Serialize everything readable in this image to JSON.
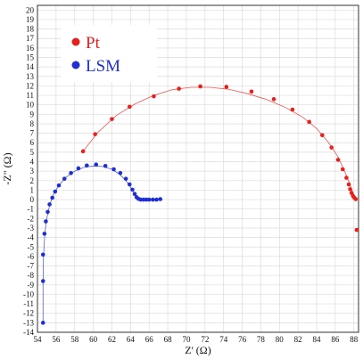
{
  "chart_data": {
    "type": "scatter",
    "title": "",
    "xlabel": "Z' (Ω)",
    "ylabel": "-Z\" (Ω)",
    "xlim": [
      54,
      88.5
    ],
    "ylim": [
      -14,
      20.5
    ],
    "xticks": [
      54,
      56,
      58,
      60,
      62,
      64,
      66,
      68,
      70,
      72,
      74,
      76,
      78,
      80,
      82,
      84,
      86,
      88
    ],
    "yticks": [
      -14,
      -13,
      -12,
      -11,
      -10,
      -9,
      -8,
      -7,
      -6,
      -5,
      -4,
      -3,
      -2,
      -1,
      0,
      1,
      2,
      3,
      4,
      5,
      6,
      7,
      8,
      9,
      10,
      11,
      12,
      13,
      14,
      15,
      16,
      17,
      18,
      19,
      20
    ],
    "grid": true,
    "legend_position": "top-left",
    "series": [
      {
        "name": "Pt",
        "color": "#e8201c",
        "points": [
          [
            58.9,
            5.1
          ],
          [
            60.2,
            6.9
          ],
          [
            62.0,
            8.5
          ],
          [
            63.9,
            9.8
          ],
          [
            66.5,
            10.9
          ],
          [
            69.2,
            11.7
          ],
          [
            71.5,
            11.95
          ],
          [
            74.3,
            11.9
          ],
          [
            77.0,
            11.4
          ],
          [
            79.4,
            10.6
          ],
          [
            81.4,
            9.5
          ],
          [
            83.2,
            8.2
          ],
          [
            84.6,
            6.8
          ],
          [
            85.6,
            5.5
          ],
          [
            86.3,
            4.2
          ],
          [
            86.8,
            3.2
          ],
          [
            87.2,
            2.3
          ],
          [
            87.45,
            1.6
          ],
          [
            87.6,
            1.1
          ],
          [
            87.75,
            0.7
          ],
          [
            87.9,
            0.4
          ],
          [
            88.05,
            0.2
          ],
          [
            88.2,
            0.05
          ],
          [
            88.3,
            -3.2
          ]
        ],
        "fit": [
          [
            58.9,
            5.1
          ],
          [
            60.5,
            7.1
          ],
          [
            62.5,
            8.9
          ],
          [
            64.5,
            10.1
          ],
          [
            66.5,
            11.0
          ],
          [
            68.5,
            11.6
          ],
          [
            70.5,
            11.85
          ],
          [
            72.5,
            11.85
          ],
          [
            74.5,
            11.65
          ],
          [
            76.5,
            11.2
          ],
          [
            78.5,
            10.6
          ],
          [
            80.5,
            9.8
          ],
          [
            82.5,
            8.7
          ],
          [
            84.0,
            7.5
          ],
          [
            85.3,
            6.0
          ],
          [
            86.3,
            4.5
          ],
          [
            87.0,
            3.0
          ],
          [
            87.5,
            1.8
          ],
          [
            87.9,
            0.7
          ],
          [
            88.25,
            0.0
          ]
        ]
      },
      {
        "name": "LSM",
        "color": "#1f2fd1",
        "points": [
          [
            54.6,
            -13.0
          ],
          [
            54.6,
            -8.6
          ],
          [
            54.6,
            -5.8
          ],
          [
            54.75,
            -3.6
          ],
          [
            54.9,
            -2.3
          ],
          [
            55.1,
            -1.3
          ],
          [
            55.3,
            -0.5
          ],
          [
            55.6,
            0.2
          ],
          [
            55.9,
            0.85
          ],
          [
            56.3,
            1.5
          ],
          [
            56.9,
            2.2
          ],
          [
            57.6,
            2.8
          ],
          [
            58.4,
            3.3
          ],
          [
            59.3,
            3.6
          ],
          [
            60.3,
            3.7
          ],
          [
            61.3,
            3.55
          ],
          [
            62.2,
            3.2
          ],
          [
            62.9,
            2.8
          ],
          [
            63.5,
            2.2
          ],
          [
            63.9,
            1.6
          ],
          [
            64.2,
            1.05
          ],
          [
            64.45,
            0.6
          ],
          [
            64.65,
            0.25
          ],
          [
            64.85,
            0.08
          ],
          [
            65.1,
            0.0
          ],
          [
            65.4,
            0.0
          ],
          [
            65.7,
            0.0
          ],
          [
            66.0,
            0.0
          ],
          [
            66.4,
            0.0
          ],
          [
            66.8,
            0.0
          ],
          [
            67.2,
            0.05
          ]
        ],
        "fit": [
          [
            54.6,
            -13.0
          ],
          [
            54.6,
            -9.0
          ],
          [
            54.65,
            -6.0
          ],
          [
            54.8,
            -3.5
          ],
          [
            55.0,
            -2.0
          ],
          [
            55.3,
            -0.6
          ],
          [
            55.7,
            0.5
          ],
          [
            56.3,
            1.5
          ],
          [
            57.0,
            2.3
          ],
          [
            58.0,
            3.0
          ],
          [
            59.0,
            3.4
          ],
          [
            60.0,
            3.55
          ],
          [
            61.0,
            3.5
          ],
          [
            62.0,
            3.2
          ],
          [
            62.8,
            2.7
          ],
          [
            63.5,
            2.0
          ],
          [
            64.0,
            1.3
          ],
          [
            64.4,
            0.7
          ],
          [
            64.8,
            0.25
          ],
          [
            65.2,
            0.05
          ],
          [
            66.0,
            0.0
          ]
        ]
      }
    ]
  }
}
